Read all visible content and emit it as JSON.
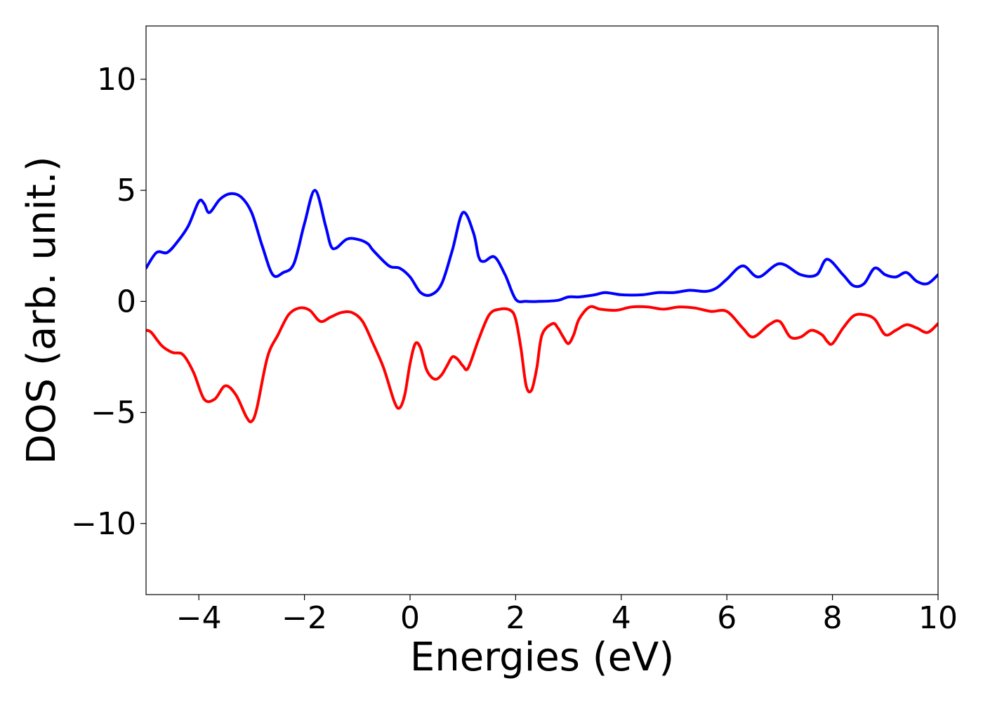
{
  "chart_data": {
    "type": "line",
    "title": "",
    "xlabel": "Energies (eV)",
    "ylabel": "DOS (arb. unit.)",
    "xlim": [
      -5,
      10
    ],
    "ylim": [
      -13.2,
      12.4
    ],
    "xticks": [
      -4,
      -2,
      0,
      2,
      4,
      6,
      8,
      10
    ],
    "xtick_labels": [
      "−4",
      "−2",
      "0",
      "2",
      "4",
      "6",
      "8",
      "10"
    ],
    "yticks": [
      -10,
      -5,
      0,
      5,
      10
    ],
    "ytick_labels": [
      "−10",
      "−5",
      "0",
      "5",
      "10"
    ],
    "grid": false,
    "legend": "none",
    "series": [
      {
        "color": "#0000ff",
        "x": [
          -5.0,
          -4.8,
          -4.6,
          -4.4,
          -4.2,
          -4.0,
          -3.9,
          -3.8,
          -3.6,
          -3.4,
          -3.2,
          -3.0,
          -2.8,
          -2.6,
          -2.4,
          -2.2,
          -2.0,
          -1.8,
          -1.6,
          -1.5,
          -1.4,
          -1.2,
          -1.0,
          -0.8,
          -0.7,
          -0.4,
          -0.2,
          0.0,
          0.2,
          0.4,
          0.6,
          0.8,
          1.0,
          1.2,
          1.3,
          1.4,
          1.6,
          1.8,
          2.0,
          2.2,
          2.5,
          2.8,
          3.0,
          3.2,
          3.5,
          3.7,
          4.0,
          4.4,
          4.7,
          5.0,
          5.3,
          5.6,
          5.8,
          6.0,
          6.3,
          6.6,
          7.0,
          7.4,
          7.7,
          7.9,
          8.2,
          8.4,
          8.6,
          8.8,
          9.0,
          9.2,
          9.4,
          9.6,
          9.8,
          10.0
        ],
        "y": [
          1.5,
          2.2,
          2.2,
          2.7,
          3.4,
          4.5,
          4.4,
          4.0,
          4.6,
          4.85,
          4.7,
          4.0,
          2.5,
          1.2,
          1.3,
          1.7,
          3.5,
          5.0,
          3.4,
          2.5,
          2.4,
          2.8,
          2.8,
          2.6,
          2.3,
          1.6,
          1.5,
          1.1,
          0.4,
          0.3,
          0.8,
          2.3,
          4.0,
          3.1,
          2.0,
          1.8,
          2.0,
          1.2,
          0.1,
          0.0,
          0.0,
          0.05,
          0.2,
          0.2,
          0.3,
          0.4,
          0.3,
          0.3,
          0.4,
          0.4,
          0.5,
          0.45,
          0.6,
          1.0,
          1.6,
          1.1,
          1.7,
          1.2,
          1.2,
          1.9,
          1.2,
          0.7,
          0.8,
          1.5,
          1.2,
          1.1,
          1.3,
          0.9,
          0.8,
          1.2
        ]
      },
      {
        "color": "#ff0000",
        "x": [
          -5.0,
          -4.9,
          -4.7,
          -4.5,
          -4.3,
          -4.1,
          -3.9,
          -3.7,
          -3.5,
          -3.3,
          -3.1,
          -3.0,
          -2.9,
          -2.7,
          -2.5,
          -2.3,
          -2.1,
          -1.9,
          -1.7,
          -1.5,
          -1.3,
          -1.1,
          -0.9,
          -0.7,
          -0.5,
          -0.3,
          -0.2,
          -0.1,
          0.0,
          0.1,
          0.2,
          0.3,
          0.4,
          0.5,
          0.6,
          0.7,
          0.8,
          0.9,
          1.0,
          1.1,
          1.3,
          1.5,
          1.7,
          1.9,
          2.0,
          2.1,
          2.2,
          2.3,
          2.4,
          2.5,
          2.7,
          2.8,
          2.9,
          3.0,
          3.1,
          3.2,
          3.4,
          3.6,
          3.9,
          4.2,
          4.5,
          4.8,
          5.1,
          5.4,
          5.7,
          6.0,
          6.3,
          6.5,
          6.8,
          7.0,
          7.2,
          7.4,
          7.6,
          7.8,
          7.9,
          8.0,
          8.2,
          8.4,
          8.6,
          8.8,
          9.0,
          9.2,
          9.4,
          9.6,
          9.8,
          10.0
        ],
        "y": [
          -1.3,
          -1.4,
          -2.0,
          -2.3,
          -2.4,
          -3.2,
          -4.4,
          -4.4,
          -3.8,
          -4.2,
          -5.2,
          -5.4,
          -4.8,
          -2.5,
          -1.5,
          -0.6,
          -0.3,
          -0.4,
          -0.9,
          -0.7,
          -0.5,
          -0.5,
          -0.9,
          -1.9,
          -3.0,
          -4.5,
          -4.8,
          -4.2,
          -2.8,
          -1.9,
          -2.1,
          -3.0,
          -3.4,
          -3.5,
          -3.3,
          -2.9,
          -2.5,
          -2.6,
          -2.9,
          -3.0,
          -1.7,
          -0.6,
          -0.35,
          -0.4,
          -0.8,
          -2.1,
          -3.8,
          -4.0,
          -3.0,
          -1.5,
          -1.0,
          -1.2,
          -1.6,
          -1.9,
          -1.5,
          -0.8,
          -0.25,
          -0.35,
          -0.4,
          -0.25,
          -0.25,
          -0.35,
          -0.25,
          -0.3,
          -0.45,
          -0.45,
          -1.2,
          -1.6,
          -1.05,
          -0.9,
          -1.6,
          -1.6,
          -1.3,
          -1.5,
          -1.8,
          -1.9,
          -1.2,
          -0.65,
          -0.6,
          -0.8,
          -1.5,
          -1.3,
          -1.05,
          -1.2,
          -1.4,
          -1.0
        ]
      }
    ]
  }
}
